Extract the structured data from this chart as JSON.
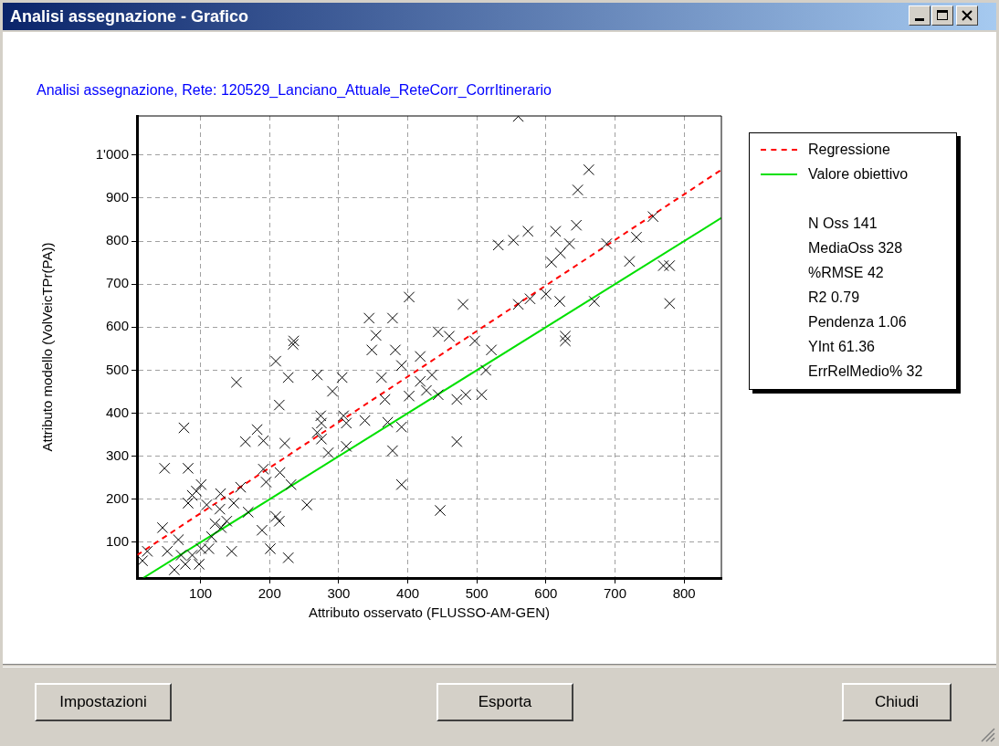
{
  "chart_data": {
    "type": "scatter",
    "title": "Analisi assegnazione - Grafico",
    "subtitle": "Analisi assegnazione, Rete: 120529_Lanciano_Attuale_ReteCorr_CorrItinerario",
    "xlabel": "Attributo osservato (FLUSSO-AM-GEN)",
    "ylabel": "Attributo modello (VolVeicTPr(PA))",
    "xlim": [
      8,
      854
    ],
    "ylim": [
      17,
      1091
    ],
    "xticks": [
      100,
      200,
      300,
      400,
      500,
      600,
      700,
      800
    ],
    "yticks": [
      100,
      200,
      300,
      400,
      500,
      600,
      700,
      800,
      900,
      {
        "value": 1000,
        "label": "1'000"
      }
    ],
    "grid": true,
    "legend": "right",
    "series": [
      {
        "marker": "cross",
        "color": "#000000",
        "x": [
          560,
          662,
          646,
          755,
          731,
          721,
          770,
          779,
          779,
          531,
          553,
          574,
          614,
          644,
          634,
          621,
          608,
          688,
          480,
          560,
          577,
          600,
          620,
          670,
          628,
          460,
          497,
          402,
          344,
          378,
          354,
          235,
          234,
          209,
          227,
          269,
          305,
          291,
          348,
          382,
          391,
          362,
          418,
          418,
          367,
          402,
          152,
          214,
          274,
          275,
          307,
          311,
          338,
          371,
          391,
          378,
          391,
          269,
          191,
          182,
          165,
          222,
          275,
          285,
          311,
          76,
          48,
          82,
          101,
          88,
          94,
          82,
          158,
          191,
          195,
          215,
          231,
          254,
          209,
          214,
          189,
          201,
          227,
          145,
          169,
          138,
          128,
          109,
          148,
          130,
          116,
          101,
          88,
          68,
          72,
          52,
          45,
          23,
          16,
          62,
          98,
          78,
          112,
          121,
          129,
          521,
          513,
          507,
          484,
          471,
          444,
          427,
          435,
          471,
          447,
          628,
          444
        ],
        "values": [
          1090,
          966,
          919,
          857,
          809,
          753,
          743,
          743,
          655,
          791,
          802,
          823,
          823,
          837,
          794,
          772,
          751,
          794,
          653,
          653,
          666,
          677,
          660,
          660,
          579,
          579,
          568,
          670,
          621,
          621,
          581,
          568,
          560,
          521,
          483,
          489,
          483,
          451,
          547,
          547,
          511,
          483,
          532,
          474,
          432,
          440,
          472,
          419,
          394,
          377,
          394,
          377,
          383,
          379,
          368,
          313,
          234,
          355,
          336,
          362,
          334,
          330,
          340,
          308,
          323,
          366,
          272,
          272,
          234,
          209,
          219,
          191,
          228,
          270,
          240,
          262,
          234,
          187,
          160,
          149,
          128,
          85,
          64,
          79,
          170,
          149,
          177,
          187,
          191,
          134,
          113,
          85,
          70,
          106,
          70,
          79,
          134,
          79,
          57,
          36,
          49,
          49,
          85,
          143,
          213,
          547,
          500,
          443,
          443,
          432,
          443,
          453,
          489,
          334,
          174,
          568,
          589
        ]
      },
      {
        "type": "line",
        "name": "Regressione",
        "color": "#ff0000",
        "line_style": "dashed",
        "x": [
          8,
          854
        ],
        "values": [
          70,
          966
        ]
      },
      {
        "type": "line",
        "name": "Valore obiettivo",
        "color": "#00e000",
        "line_style": "solid",
        "x": [
          17,
          854
        ],
        "values": [
          17,
          854
        ]
      }
    ],
    "annotations": [
      "N Oss 141",
      "MediaOss 328",
      "%RMSE 42",
      "R2 0.79",
      "Pendenza 1.06",
      "YInt 61.36",
      "ErrRelMedio% 32",
      "Impostazioni",
      "Esporta",
      "Chiudi"
    ]
  }
}
